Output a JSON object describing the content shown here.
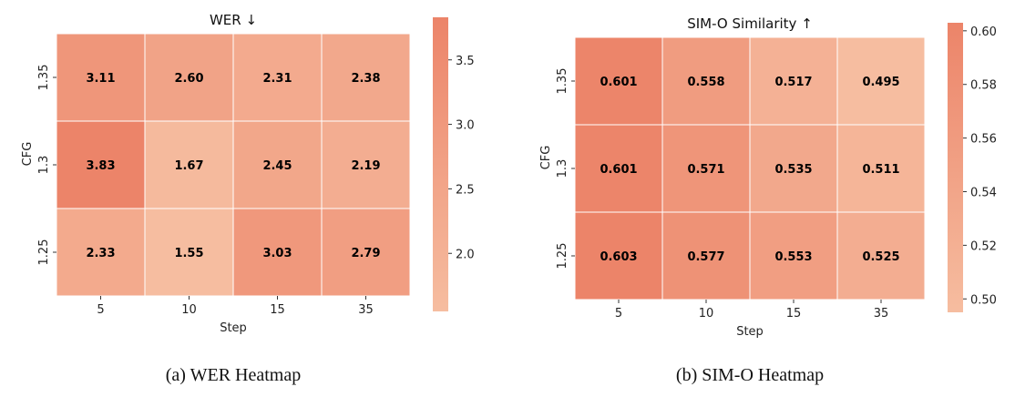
{
  "chart_data": [
    {
      "type": "heatmap",
      "title": "WER ↓",
      "caption": "(a) WER Heatmap",
      "xlabel": "Step",
      "ylabel": "CFG",
      "x_categories": [
        "5",
        "10",
        "15",
        "35"
      ],
      "y_categories": [
        "1.35",
        "1.3",
        "1.25"
      ],
      "values": [
        [
          3.11,
          2.6,
          2.31,
          2.38
        ],
        [
          3.83,
          1.67,
          2.45,
          2.19
        ],
        [
          2.33,
          1.55,
          3.03,
          2.79
        ]
      ],
      "value_labels": [
        [
          "3.11",
          "2.60",
          "2.31",
          "2.38"
        ],
        [
          "3.83",
          "1.67",
          "2.45",
          "2.19"
        ],
        [
          "2.33",
          "1.55",
          "3.03",
          "2.79"
        ]
      ],
      "colorbar": {
        "range": [
          1.55,
          3.83
        ],
        "ticks": [
          "2.0",
          "2.5",
          "3.0",
          "3.5"
        ],
        "tick_values": [
          2.0,
          2.5,
          3.0,
          3.5
        ]
      },
      "colors": {
        "low": "#f6bda0",
        "high": "#ec8469"
      }
    },
    {
      "type": "heatmap",
      "title": "SIM-O Similarity ↑",
      "caption": "(b) SIM-O Heatmap",
      "xlabel": "Step",
      "ylabel": "CFG",
      "x_categories": [
        "5",
        "10",
        "15",
        "35"
      ],
      "y_categories": [
        "1.35",
        "1.3",
        "1.25"
      ],
      "values": [
        [
          0.601,
          0.558,
          0.517,
          0.495
        ],
        [
          0.601,
          0.571,
          0.535,
          0.511
        ],
        [
          0.603,
          0.577,
          0.553,
          0.525
        ]
      ],
      "value_labels": [
        [
          "0.601",
          "0.558",
          "0.517",
          "0.495"
        ],
        [
          "0.601",
          "0.571",
          "0.535",
          "0.511"
        ],
        [
          "0.603",
          "0.577",
          "0.553",
          "0.525"
        ]
      ],
      "colorbar": {
        "range": [
          0.495,
          0.603
        ],
        "ticks": [
          "0.50",
          "0.52",
          "0.54",
          "0.56",
          "0.58",
          "0.60"
        ],
        "tick_values": [
          0.5,
          0.52,
          0.54,
          0.56,
          0.58,
          0.6
        ]
      },
      "colors": {
        "low": "#f6bda0",
        "high": "#ec8469"
      }
    }
  ]
}
